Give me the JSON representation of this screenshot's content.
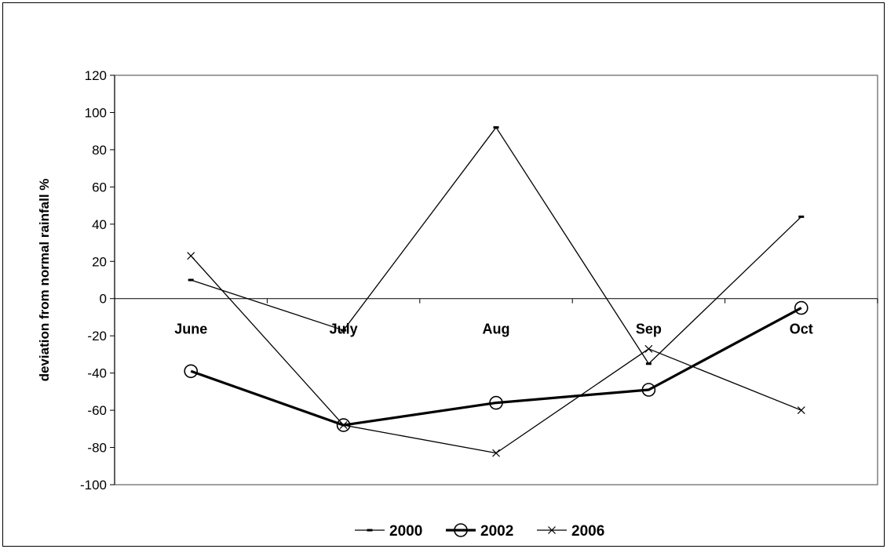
{
  "chart_data": {
    "type": "line",
    "title": "",
    "xlabel": "",
    "ylabel": "deviation from normal rainfall %",
    "categories": [
      "June",
      "July",
      "Aug",
      "Sep",
      "Oct"
    ],
    "ylim": [
      -100,
      120
    ],
    "yticks": [
      -100,
      -80,
      -60,
      -40,
      -20,
      0,
      20,
      40,
      60,
      80,
      100,
      120
    ],
    "grid": false,
    "legend_position": "bottom",
    "series": [
      {
        "name": "2000",
        "values": [
          10,
          -17,
          92,
          -35,
          44
        ],
        "marker": "dash",
        "stroke": "#000000",
        "emphasis": "thin"
      },
      {
        "name": "2002",
        "values": [
          -39,
          -68,
          -56,
          -49,
          -5
        ],
        "marker": "circle",
        "stroke": "#000000",
        "emphasis": "thick"
      },
      {
        "name": "2006",
        "values": [
          23,
          -68,
          -83,
          -27,
          -60
        ],
        "marker": "x",
        "stroke": "#000000",
        "emphasis": "thin"
      }
    ]
  }
}
